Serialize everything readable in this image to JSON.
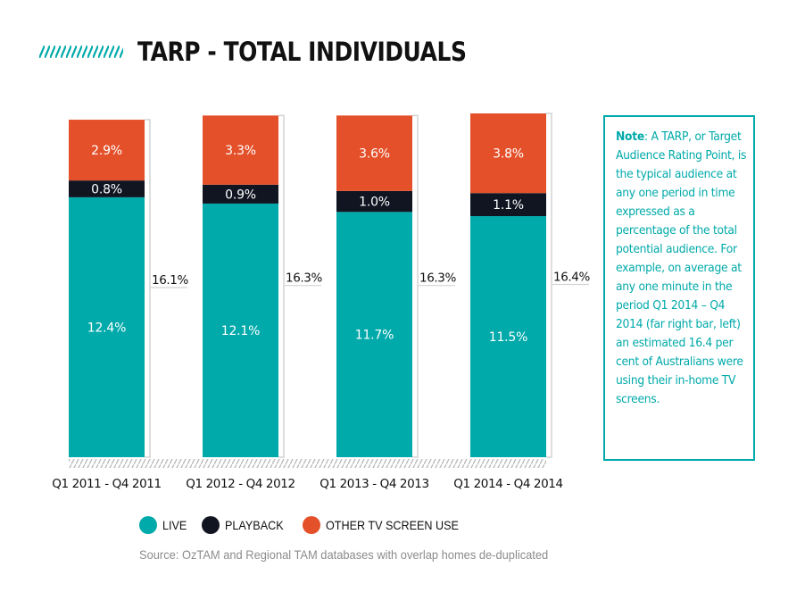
{
  "header": {
    "title": "TARP - TOTAL INDIVIDUALS"
  },
  "chart_data": {
    "type": "bar",
    "stacked": true,
    "categories": [
      "Q1 2011 - Q4 2011",
      "Q1 2012 - Q4 2012",
      "Q1 2013 - Q4 2013",
      "Q1 2014 - Q4 2014"
    ],
    "series": [
      {
        "name": "LIVE",
        "values": [
          12.4,
          12.1,
          11.7,
          11.5
        ],
        "labels": [
          "12.4%",
          "12.1%",
          "11.7%",
          "11.5%"
        ],
        "color": "#00a9aa"
      },
      {
        "name": "PLAYBACK",
        "values": [
          0.8,
          0.9,
          1.0,
          1.1
        ],
        "labels": [
          "0.8%",
          "0.9%",
          "1.0%",
          "1.1%"
        ],
        "color": "#111522"
      },
      {
        "name": "OTHER TV SCREEN USE",
        "values": [
          2.9,
          3.3,
          3.6,
          3.8
        ],
        "labels": [
          "2.9%",
          "3.3%",
          "3.6%",
          "3.8%"
        ],
        "color": "#e4502a"
      }
    ],
    "totals": [
      16.1,
      16.3,
      16.3,
      16.4
    ],
    "total_labels": [
      "16.1%",
      "16.3%",
      "16.3%",
      "16.4%"
    ],
    "ylim": [
      0,
      16.4
    ],
    "grid": false,
    "legend_position": "bottom-left"
  },
  "note": {
    "label": "Note",
    "text": ": A TARP, or Target Audience Rating Point, is the typical audience at any one period in time expressed as a percentage of the total potential audience. For example, on average at any one minute in the period Q1 2014 – Q4 2014 (far right bar, left) an estimated 16.4 per cent of Australians were using their in-home TV screens."
  },
  "legend": {
    "items": [
      {
        "label": "LIVE",
        "color": "#00a9aa"
      },
      {
        "label": "PLAYBACK",
        "color": "#111522"
      },
      {
        "label": "OTHER TV SCREEN USE",
        "color": "#e4502a"
      }
    ]
  },
  "source": "Source: OzTAM and Regional TAM databases with overlap homes de-duplicated"
}
